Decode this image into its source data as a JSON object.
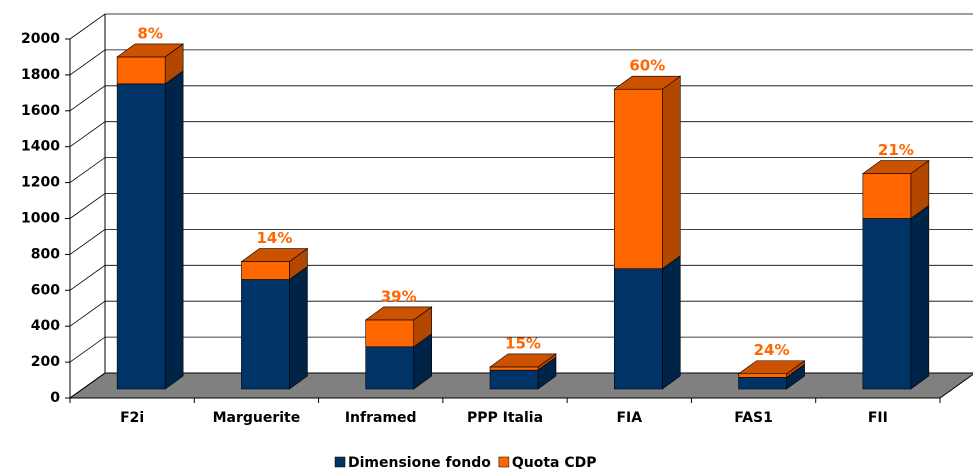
{
  "chart_data": {
    "type": "bar3d_stacked",
    "categories": [
      "F2i",
      "Marguerite",
      "Inframed",
      "PPP Italia",
      "FIA",
      "FAS1",
      "FII"
    ],
    "series": [
      {
        "name": "Dimensione fondo",
        "color": "#003366",
        "values": [
          1700,
          610,
          235,
          105,
          670,
          65,
          950
        ]
      },
      {
        "name": "Quota CDP",
        "color": "#ff6600",
        "values": [
          150,
          100,
          150,
          18,
          1000,
          20,
          250
        ]
      }
    ],
    "percent_labels": [
      "8%",
      "14%",
      "39%",
      "15%",
      "60%",
      "24%",
      "21%"
    ],
    "ylim": [
      0,
      2000
    ],
    "yticks": [
      0,
      200,
      400,
      600,
      800,
      1000,
      1200,
      1400,
      1600,
      1800,
      2000
    ],
    "grid": true,
    "legend": "bottom"
  }
}
